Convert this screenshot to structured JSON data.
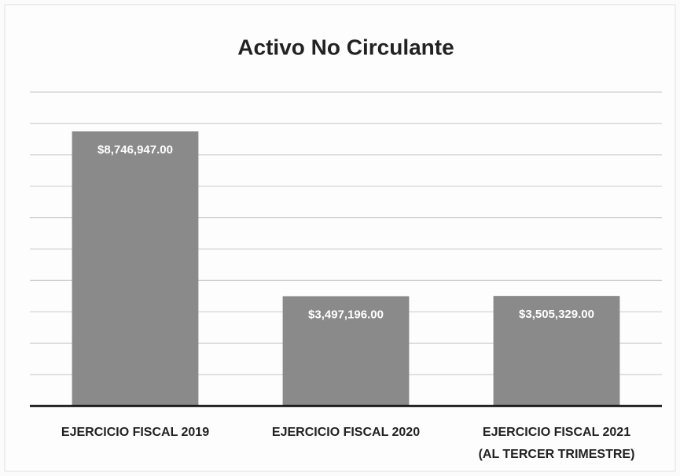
{
  "chart_data": {
    "type": "bar",
    "title": "Activo No Circulante",
    "categories": [
      "EJERCICIO FISCAL 2019",
      "EJERCICIO FISCAL 2020",
      "EJERCICIO FISCAL 2021\n(AL TERCER TRIMESTRE)"
    ],
    "values": [
      8746947,
      3497196,
      3505329
    ],
    "value_labels": [
      "$8,746,947.00",
      "$3,497,196.00",
      "$3,505,329.00"
    ],
    "color": "#8a8a8a",
    "ylim": [
      0,
      10000000
    ],
    "yticks": [
      0,
      1000000,
      2000000,
      3000000,
      4000000,
      5000000,
      6000000,
      7000000,
      8000000,
      9000000,
      10000000
    ],
    "grid": true
  }
}
